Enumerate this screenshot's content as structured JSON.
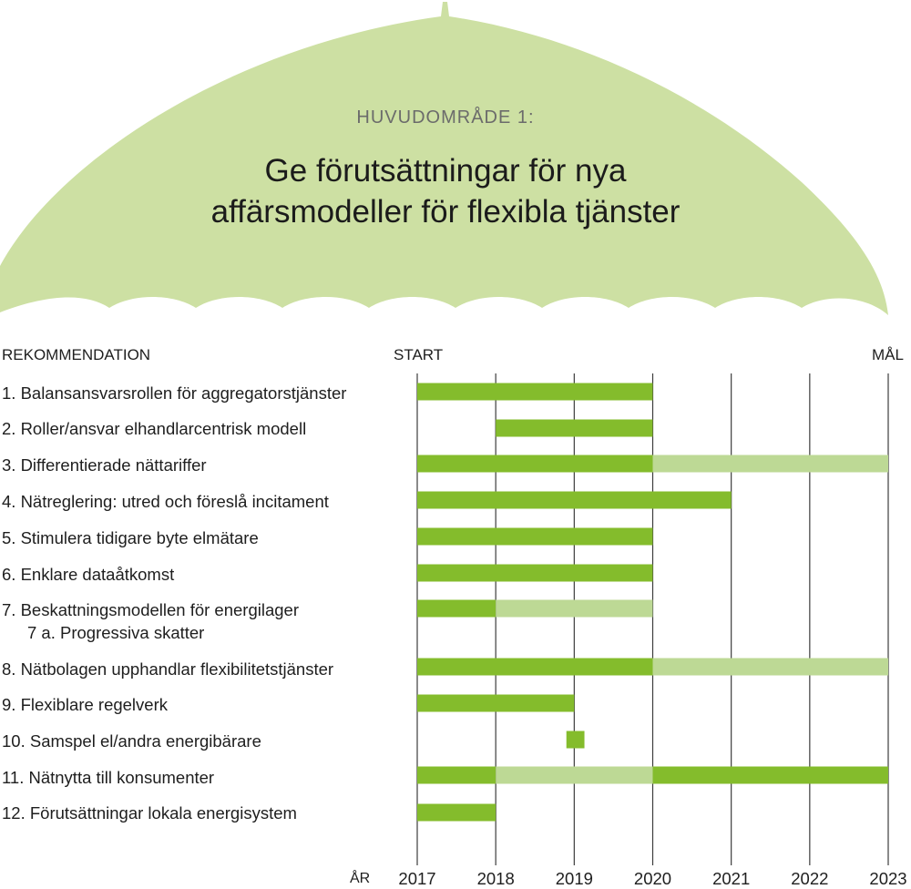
{
  "header": {
    "subtitle": "HUVUDOMRÅDE 1:",
    "title_line1": "Ge förutsättningar för nya",
    "title_line2": "affärsmodeller för flexibla tjänster"
  },
  "colors": {
    "umbrella": "#cde0a3",
    "bar_dark": "#84bc2c",
    "bar_light": "#bdd995",
    "grid": "#3c3c3c"
  },
  "chart_data": {
    "type": "gantt",
    "column_header": "REKOMMENDATION",
    "start_label": "START",
    "end_label": "MÅL",
    "axis_label": "ÅR",
    "xlim": [
      2017,
      2023
    ],
    "ticks": [
      2017,
      2018,
      2019,
      2020,
      2021,
      2022,
      2023
    ],
    "rows": [
      {
        "label": "1. Balansansvarsrollen för aggregatorstjänster",
        "segments": [
          {
            "start": 2017,
            "end": 2020,
            "shade": "dark"
          }
        ]
      },
      {
        "label": "2. Roller/ansvar elhandlarcentrisk modell",
        "segments": [
          {
            "start": 2018,
            "end": 2020,
            "shade": "dark"
          }
        ]
      },
      {
        "label": "3. Differentierade nättariffer",
        "segments": [
          {
            "start": 2017,
            "end": 2020,
            "shade": "dark"
          },
          {
            "start": 2020,
            "end": 2023,
            "shade": "light"
          }
        ]
      },
      {
        "label": "4. Nätreglering: utred och föreslå incitament",
        "segments": [
          {
            "start": 2017,
            "end": 2021,
            "shade": "dark"
          }
        ]
      },
      {
        "label": "5. Stimulera tidigare byte elmätare",
        "segments": [
          {
            "start": 2017,
            "end": 2020,
            "shade": "dark"
          }
        ]
      },
      {
        "label": "6. Enklare dataåtkomst",
        "segments": [
          {
            "start": 2017,
            "end": 2020,
            "shade": "dark"
          }
        ]
      },
      {
        "label": "7. Beskattningsmodellen för energilager",
        "sublabel": "7 a. Progressiva skatter",
        "segments": [
          {
            "start": 2017,
            "end": 2018,
            "shade": "dark"
          },
          {
            "start": 2018,
            "end": 2020,
            "shade": "light"
          }
        ]
      },
      {
        "label": "8. Nätbolagen upphandlar flexibilitetstjänster",
        "segments": [
          {
            "start": 2017,
            "end": 2020,
            "shade": "dark"
          },
          {
            "start": 2020,
            "end": 2023,
            "shade": "light"
          }
        ]
      },
      {
        "label": "9. Flexiblare regelverk",
        "segments": [
          {
            "start": 2017,
            "end": 2019,
            "shade": "dark"
          }
        ]
      },
      {
        "label": "10. Samspel el/andra energibärare",
        "segments": [
          {
            "start": 2018.9,
            "end": 2019.13,
            "shade": "dark"
          }
        ]
      },
      {
        "label": "11. Nätnytta till konsumenter",
        "segments": [
          {
            "start": 2017,
            "end": 2018,
            "shade": "dark"
          },
          {
            "start": 2018,
            "end": 2020,
            "shade": "light"
          },
          {
            "start": 2020,
            "end": 2023,
            "shade": "dark"
          }
        ]
      },
      {
        "label": "12. Förutsättningar lokala energisystem",
        "segments": [
          {
            "start": 2017,
            "end": 2018,
            "shade": "dark"
          }
        ]
      }
    ]
  }
}
